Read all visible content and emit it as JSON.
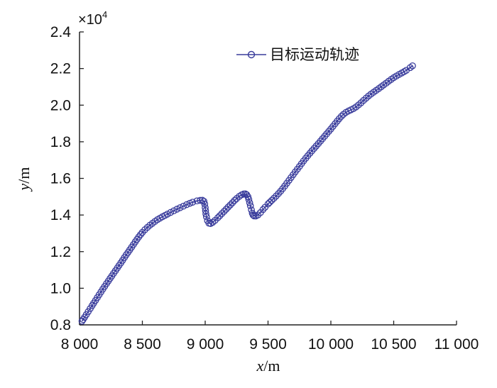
{
  "chart_data": {
    "type": "line",
    "xlabel": "x/m",
    "ylabel": "y/m",
    "xlim": [
      8000,
      11000
    ],
    "ylim": [
      0.8,
      2.4
    ],
    "y_multiplier": "×10",
    "y_multiplier_exponent": "4",
    "grid": false,
    "legend_position": "top-right",
    "x_ticks": [
      {
        "value": 8000,
        "label": "8 000"
      },
      {
        "value": 8500,
        "label": "8 500"
      },
      {
        "value": 9000,
        "label": "9 000"
      },
      {
        "value": 9500,
        "label": "9 500"
      },
      {
        "value": 10000,
        "label": "10 000"
      },
      {
        "value": 10500,
        "label": "10 500"
      },
      {
        "value": 11000,
        "label": "11 000"
      }
    ],
    "y_ticks": [
      {
        "value": 0.8,
        "label": "0.8"
      },
      {
        "value": 1.0,
        "label": "1.0"
      },
      {
        "value": 1.2,
        "label": "1.2"
      },
      {
        "value": 1.4,
        "label": "1.4"
      },
      {
        "value": 1.6,
        "label": "1.6"
      },
      {
        "value": 1.8,
        "label": "1.8"
      },
      {
        "value": 2.0,
        "label": "2.0"
      },
      {
        "value": 2.2,
        "label": "2.2"
      },
      {
        "value": 2.4,
        "label": "2.4"
      }
    ],
    "series": [
      {
        "name": "目标运动轨迹",
        "color": "#3a3d9c",
        "marker": "circle",
        "x": [
          8020,
          8100,
          8200,
          8300,
          8400,
          8500,
          8600,
          8700,
          8800,
          8900,
          8960,
          8990,
          9000,
          9010,
          9030,
          9060,
          9100,
          9150,
          9200,
          9250,
          9290,
          9320,
          9340,
          9360,
          9375,
          9390,
          9420,
          9460,
          9500,
          9600,
          9700,
          9800,
          9900,
          10000,
          10100,
          10200,
          10300,
          10400,
          10500,
          10600,
          10650
        ],
        "y": [
          0.82,
          0.905,
          1.01,
          1.11,
          1.21,
          1.305,
          1.365,
          1.405,
          1.44,
          1.47,
          1.48,
          1.475,
          1.44,
          1.39,
          1.355,
          1.36,
          1.385,
          1.42,
          1.455,
          1.49,
          1.51,
          1.515,
          1.5,
          1.45,
          1.41,
          1.395,
          1.4,
          1.43,
          1.46,
          1.53,
          1.62,
          1.71,
          1.79,
          1.87,
          1.95,
          1.99,
          2.05,
          2.1,
          2.15,
          2.19,
          2.215
        ]
      }
    ]
  }
}
